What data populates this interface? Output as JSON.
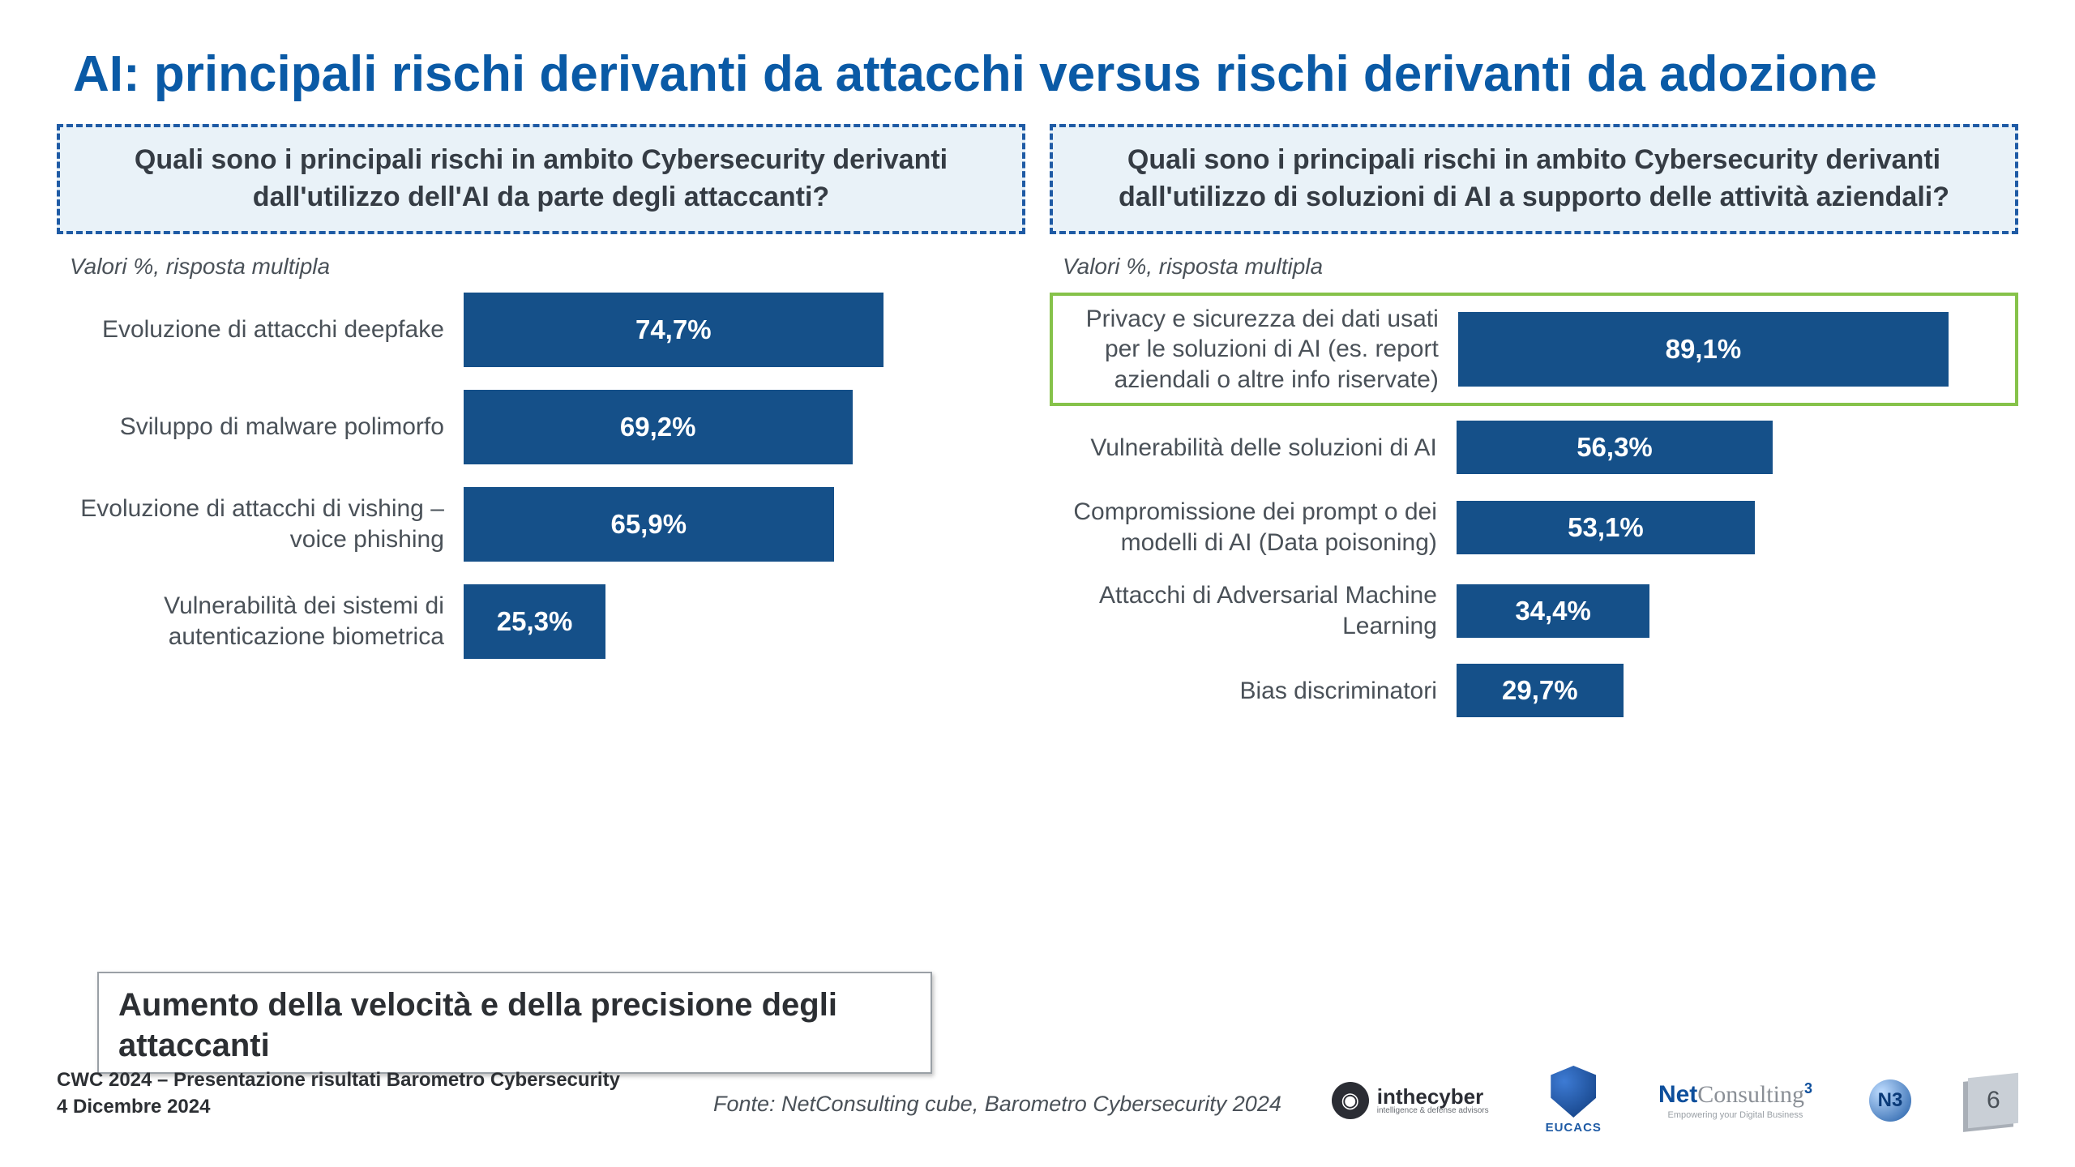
{
  "title": "AI: principali rischi derivanti da attacchi  versus rischi derivanti da adozione",
  "panels": {
    "left": {
      "question": "Quali sono i principali rischi in ambito Cybersecurity derivanti dall'utilizzo dell'AI da parte degli attaccanti?",
      "note": "Valori %, risposta multipla",
      "bar_color": "#155089",
      "text_color": "#ffffff",
      "max_value": 100,
      "bars": [
        {
          "label": "Evoluzione di attacchi deepfake",
          "value": 74.7,
          "display": "74,7%",
          "highlight": false,
          "height": "tall"
        },
        {
          "label": "Sviluppo di malware polimorfo",
          "value": 69.2,
          "display": "69,2%",
          "highlight": false,
          "height": "tall"
        },
        {
          "label": "Evoluzione di attacchi di vishing – voice phishing",
          "value": 65.9,
          "display": "65,9%",
          "highlight": false,
          "height": "tall"
        },
        {
          "label": "Vulnerabilità dei sistemi di autenticazione biometrica",
          "value": 25.3,
          "display": "25,3%",
          "highlight": false,
          "height": "tall"
        }
      ]
    },
    "right": {
      "question": "Quali sono i principali rischi in ambito Cybersecurity derivanti dall'utilizzo di soluzioni di AI a supporto delle attività aziendali?",
      "note": "Valori %, risposta multipla",
      "bar_color": "#155089",
      "text_color": "#ffffff",
      "max_value": 100,
      "highlight_border": "#86c24a",
      "bars": [
        {
          "label": "Privacy e sicurezza dei dati usati per le soluzioni di AI (es. report aziendali o altre info riservate)",
          "value": 89.1,
          "display": "89,1%",
          "highlight": true,
          "height": "tall"
        },
        {
          "label": "Vulnerabilità delle soluzioni di AI",
          "value": 56.3,
          "display": "56,3%",
          "highlight": false,
          "height": "short"
        },
        {
          "label": "Compromissione dei prompt o dei modelli di AI (Data poisoning)",
          "value": 53.1,
          "display": "53,1%",
          "highlight": false,
          "height": "short"
        },
        {
          "label": "Attacchi di Adversarial Machine Learning",
          "value": 34.4,
          "display": "34,4%",
          "highlight": false,
          "height": "short"
        },
        {
          "label": "Bias discriminatori",
          "value": 29.7,
          "display": "29,7%",
          "highlight": false,
          "height": "short"
        }
      ]
    }
  },
  "callout": "Aumento della velocità e della precisione degli attaccanti",
  "footer": {
    "line1": "CWC 2024 – Presentazione risultati Barometro Cybersecurity",
    "line2": "4 Dicembre 2024"
  },
  "source": "Fonte: NetConsulting cube, Barometro Cybersecurity 2024",
  "logos": {
    "inthecyber": {
      "main": "inthecyber",
      "sub": "intelligence & defense advisors"
    },
    "eucacs": "EUCACS",
    "netconsulting": {
      "net": "Net",
      "c": "Consulting",
      "sup": "3",
      "sub": "Empowering your Digital Business"
    },
    "page": "6"
  }
}
